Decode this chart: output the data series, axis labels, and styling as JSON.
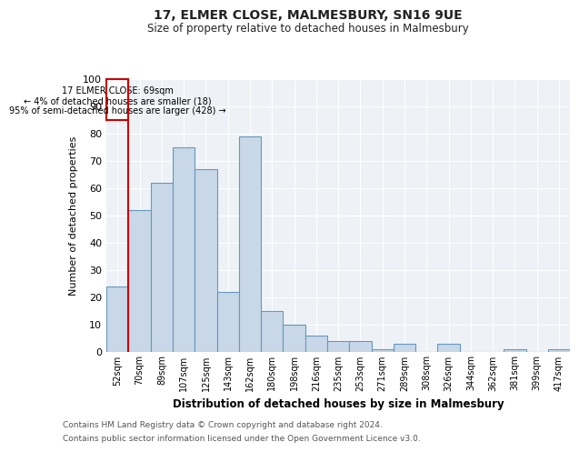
{
  "title1": "17, ELMER CLOSE, MALMESBURY, SN16 9UE",
  "title2": "Size of property relative to detached houses in Malmesbury",
  "xlabel": "Distribution of detached houses by size in Malmesbury",
  "ylabel": "Number of detached properties",
  "categories": [
    "52sqm",
    "70sqm",
    "89sqm",
    "107sqm",
    "125sqm",
    "143sqm",
    "162sqm",
    "180sqm",
    "198sqm",
    "216sqm",
    "235sqm",
    "253sqm",
    "271sqm",
    "289sqm",
    "308sqm",
    "326sqm",
    "344sqm",
    "362sqm",
    "381sqm",
    "399sqm",
    "417sqm"
  ],
  "values": [
    24,
    52,
    62,
    75,
    67,
    22,
    79,
    15,
    10,
    6,
    4,
    4,
    1,
    3,
    0,
    3,
    0,
    0,
    1,
    0,
    1
  ],
  "bar_color": "#c8d8e8",
  "bar_edge_color": "#6699bb",
  "vline_x_index": 1,
  "vline_color": "#cc0000",
  "annotation_title": "17 ELMER CLOSE: 69sqm",
  "annotation_line1": "← 4% of detached houses are smaller (18)",
  "annotation_line2": "95% of semi-detached houses are larger (428) →",
  "annotation_box_color": "#cc0000",
  "ylim": [
    0,
    100
  ],
  "background_color": "#eef2f7",
  "footer1": "Contains HM Land Registry data © Crown copyright and database right 2024.",
  "footer2": "Contains public sector information licensed under the Open Government Licence v3.0."
}
